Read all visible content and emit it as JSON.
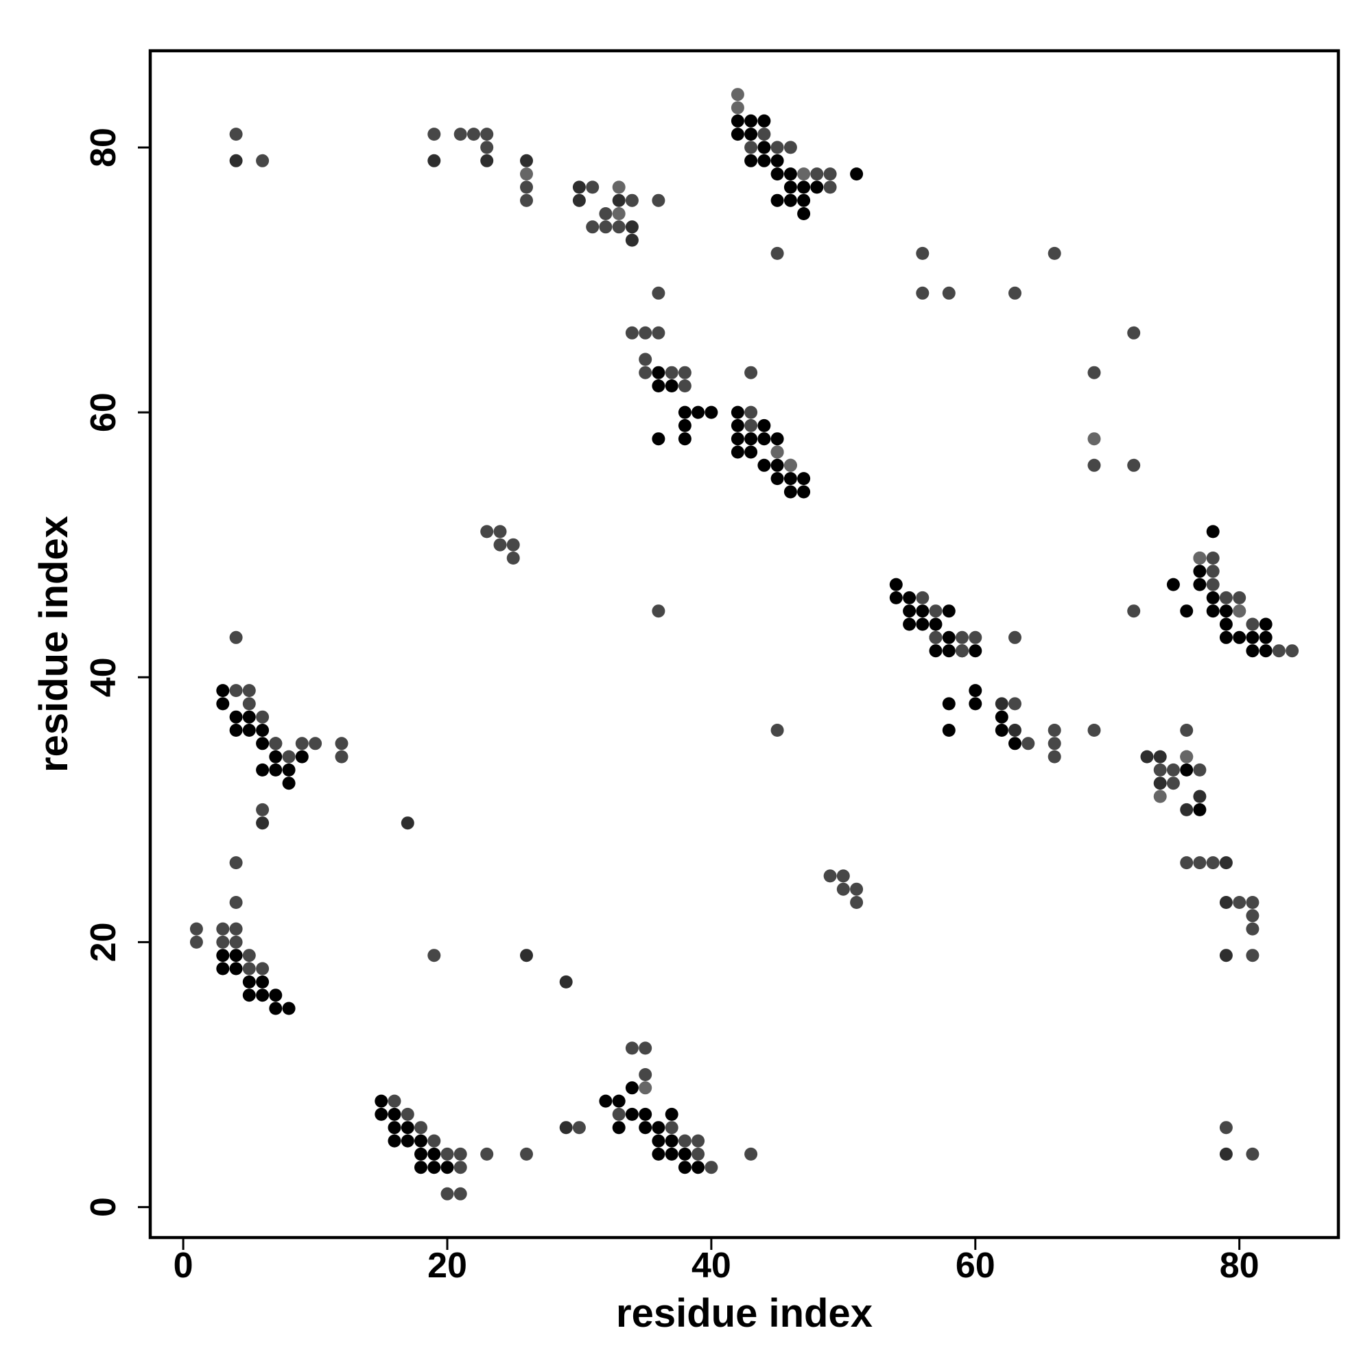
{
  "chart_data": {
    "type": "scatter",
    "title": "",
    "xlabel": "residue index",
    "ylabel": "residue index",
    "xlim": [
      -2.5,
      87.5
    ],
    "ylim": [
      -2.3,
      87.3
    ],
    "xticks": [
      0,
      20,
      40,
      60,
      80
    ],
    "yticks": [
      0,
      20,
      40,
      60,
      80
    ],
    "grid": false,
    "legend": "none",
    "colors": {
      "dark": "#000000",
      "medium": "#2e2e2e",
      "mid": "#474747",
      "light": "#666666"
    },
    "series": [
      {
        "color_key": "dark",
        "points": [
          [
            3,
            19
          ],
          [
            3,
            18
          ],
          [
            4,
            19
          ],
          [
            4,
            18
          ],
          [
            5,
            17
          ],
          [
            5,
            16
          ],
          [
            6,
            17
          ],
          [
            6,
            16
          ],
          [
            7,
            16
          ],
          [
            7,
            15
          ],
          [
            8,
            15
          ],
          [
            3,
            39
          ],
          [
            3,
            38
          ],
          [
            4,
            37
          ],
          [
            4,
            36
          ],
          [
            5,
            37
          ],
          [
            5,
            36
          ],
          [
            6,
            36
          ],
          [
            6,
            35
          ],
          [
            6,
            33
          ],
          [
            7,
            35
          ],
          [
            7,
            34
          ],
          [
            7,
            33
          ],
          [
            8,
            33
          ],
          [
            8,
            32
          ],
          [
            9,
            34
          ],
          [
            15,
            8
          ],
          [
            15,
            7
          ],
          [
            16,
            7
          ],
          [
            16,
            6
          ],
          [
            16,
            5
          ],
          [
            17,
            6
          ],
          [
            17,
            5
          ],
          [
            18,
            5
          ],
          [
            18,
            4
          ],
          [
            18,
            3
          ],
          [
            19,
            4
          ],
          [
            19,
            3
          ],
          [
            20,
            3
          ],
          [
            32,
            8
          ],
          [
            33,
            8
          ],
          [
            33,
            6
          ],
          [
            34,
            9
          ],
          [
            34,
            7
          ],
          [
            35,
            7
          ],
          [
            35,
            6
          ],
          [
            36,
            6
          ],
          [
            36,
            5
          ],
          [
            36,
            4
          ],
          [
            37,
            7
          ],
          [
            37,
            5
          ],
          [
            37,
            4
          ],
          [
            38,
            4
          ],
          [
            38,
            3
          ],
          [
            39,
            3
          ],
          [
            42,
            82
          ],
          [
            42,
            81
          ],
          [
            43,
            82
          ],
          [
            43,
            81
          ],
          [
            43,
            79
          ],
          [
            44,
            82
          ],
          [
            44,
            80
          ],
          [
            44,
            79
          ],
          [
            45,
            79
          ],
          [
            45,
            78
          ],
          [
            45,
            76
          ],
          [
            46,
            78
          ],
          [
            46,
            77
          ],
          [
            46,
            76
          ],
          [
            47,
            77
          ],
          [
            47,
            76
          ],
          [
            47,
            75
          ],
          [
            48,
            77
          ],
          [
            51,
            78
          ],
          [
            36,
            58
          ],
          [
            36,
            62
          ],
          [
            36,
            63
          ],
          [
            37,
            62
          ],
          [
            38,
            59
          ],
          [
            38,
            58
          ],
          [
            38,
            60
          ],
          [
            39,
            60
          ],
          [
            40,
            60
          ],
          [
            42,
            60
          ],
          [
            42,
            59
          ],
          [
            42,
            58
          ],
          [
            42,
            57
          ],
          [
            43,
            58
          ],
          [
            43,
            57
          ],
          [
            44,
            59
          ],
          [
            44,
            58
          ],
          [
            44,
            56
          ],
          [
            45,
            58
          ],
          [
            45,
            56
          ],
          [
            45,
            55
          ],
          [
            46,
            55
          ],
          [
            46,
            54
          ],
          [
            47,
            55
          ],
          [
            47,
            54
          ],
          [
            54,
            47
          ],
          [
            54,
            46
          ],
          [
            55,
            46
          ],
          [
            55,
            45
          ],
          [
            55,
            44
          ],
          [
            56,
            45
          ],
          [
            56,
            44
          ],
          [
            57,
            44
          ],
          [
            57,
            43
          ],
          [
            57,
            42
          ],
          [
            58,
            45
          ],
          [
            58,
            43
          ],
          [
            58,
            42
          ],
          [
            59,
            42
          ],
          [
            60,
            42
          ],
          [
            58,
            38
          ],
          [
            58,
            36
          ],
          [
            60,
            39
          ],
          [
            60,
            38
          ],
          [
            75,
            47
          ],
          [
            76,
            45
          ],
          [
            77,
            48
          ],
          [
            77,
            47
          ],
          [
            78,
            46
          ],
          [
            78,
            51
          ],
          [
            78,
            45
          ],
          [
            79,
            45
          ],
          [
            79,
            44
          ],
          [
            79,
            43
          ],
          [
            80,
            43
          ],
          [
            81,
            43
          ],
          [
            81,
            42
          ],
          [
            82,
            44
          ],
          [
            82,
            43
          ],
          [
            82,
            42
          ],
          [
            76,
            33
          ],
          [
            77,
            30
          ],
          [
            62,
            37
          ],
          [
            62,
            36
          ],
          [
            63,
            35
          ]
        ]
      },
      {
        "color_key": "medium",
        "points": [
          [
            4,
            79
          ],
          [
            19,
            79
          ],
          [
            23,
            79
          ],
          [
            26,
            79
          ],
          [
            30,
            77
          ],
          [
            33,
            76
          ],
          [
            34,
            74
          ],
          [
            34,
            73
          ],
          [
            17,
            29
          ],
          [
            26,
            19
          ],
          [
            29,
            17
          ],
          [
            79,
            4
          ],
          [
            79,
            26
          ],
          [
            79,
            23
          ],
          [
            79,
            19
          ],
          [
            73,
            34
          ],
          [
            76,
            30
          ],
          [
            77,
            31
          ],
          [
            6,
            29
          ],
          [
            62,
            38
          ],
          [
            63,
            36
          ],
          [
            74,
            34
          ],
          [
            74,
            32
          ],
          [
            30,
            76
          ],
          [
            29,
            6
          ]
        ]
      },
      {
        "color_key": "mid",
        "points": [
          [
            3,
            21
          ],
          [
            4,
            21
          ],
          [
            4,
            20
          ],
          [
            3,
            20
          ],
          [
            5,
            19
          ],
          [
            5,
            18
          ],
          [
            6,
            18
          ],
          [
            4,
            39
          ],
          [
            5,
            39
          ],
          [
            5,
            38
          ],
          [
            6,
            37
          ],
          [
            12,
            35
          ],
          [
            12,
            34
          ],
          [
            9,
            35
          ],
          [
            16,
            8
          ],
          [
            17,
            7
          ],
          [
            18,
            6
          ],
          [
            19,
            5
          ],
          [
            20,
            4
          ],
          [
            21,
            4
          ],
          [
            21,
            3
          ],
          [
            23,
            4
          ],
          [
            26,
            4
          ],
          [
            43,
            4
          ],
          [
            81,
            4
          ],
          [
            79,
            6
          ],
          [
            30,
            6
          ],
          [
            35,
            12
          ],
          [
            35,
            10
          ],
          [
            34,
            12
          ],
          [
            40,
            3
          ],
          [
            39,
            5
          ],
          [
            38,
            5
          ],
          [
            39,
            4
          ],
          [
            37,
            6
          ],
          [
            33,
            7
          ],
          [
            22,
            81
          ],
          [
            23,
            81
          ],
          [
            23,
            80
          ],
          [
            21,
            81
          ],
          [
            19,
            19
          ],
          [
            24,
            51
          ],
          [
            24,
            50
          ],
          [
            25,
            50
          ],
          [
            23,
            51
          ],
          [
            25,
            49
          ],
          [
            49,
            25
          ],
          [
            50,
            25
          ],
          [
            50,
            24
          ],
          [
            51,
            24
          ],
          [
            51,
            23
          ],
          [
            43,
            80
          ],
          [
            44,
            81
          ],
          [
            45,
            80
          ],
          [
            46,
            80
          ],
          [
            48,
            78
          ],
          [
            49,
            78
          ],
          [
            49,
            77
          ],
          [
            56,
            72
          ],
          [
            56,
            69
          ],
          [
            63,
            69
          ],
          [
            66,
            72
          ],
          [
            45,
            72
          ],
          [
            35,
            66
          ],
          [
            34,
            66
          ],
          [
            36,
            66
          ],
          [
            35,
            64
          ],
          [
            35,
            63
          ],
          [
            37,
            63
          ],
          [
            38,
            63
          ],
          [
            38,
            62
          ],
          [
            43,
            60
          ],
          [
            43,
            59
          ],
          [
            45,
            57
          ],
          [
            46,
            56
          ],
          [
            56,
            46
          ],
          [
            57,
            45
          ],
          [
            59,
            43
          ],
          [
            59,
            42
          ],
          [
            60,
            43
          ],
          [
            63,
            38
          ],
          [
            66,
            36
          ],
          [
            66,
            35
          ],
          [
            69,
            36
          ],
          [
            69,
            56
          ],
          [
            72,
            56
          ],
          [
            72,
            66
          ],
          [
            69,
            63
          ],
          [
            72,
            45
          ],
          [
            74,
            33
          ],
          [
            75,
            33
          ],
          [
            76,
            34
          ],
          [
            77,
            33
          ],
          [
            78,
            49
          ],
          [
            77,
            49
          ],
          [
            78,
            48
          ],
          [
            80,
            46
          ],
          [
            80,
            45
          ],
          [
            81,
            44
          ],
          [
            83,
            42
          ],
          [
            84,
            42
          ],
          [
            80,
            23
          ],
          [
            81,
            23
          ],
          [
            81,
            22
          ],
          [
            81,
            21
          ],
          [
            81,
            19
          ],
          [
            76,
            26
          ],
          [
            77,
            26
          ],
          [
            78,
            26
          ],
          [
            64,
            35
          ],
          [
            66,
            34
          ],
          [
            36,
            76
          ],
          [
            34,
            76
          ],
          [
            33,
            74
          ],
          [
            32,
            75
          ],
          [
            32,
            74
          ],
          [
            31,
            74
          ],
          [
            31,
            77
          ],
          [
            58,
            69
          ],
          [
            63,
            43
          ],
          [
            45,
            36
          ],
          [
            4,
            26
          ],
          [
            4,
            43
          ],
          [
            6,
            30
          ],
          [
            7,
            35
          ],
          [
            8,
            34
          ],
          [
            10,
            35
          ],
          [
            1,
            21
          ],
          [
            1,
            20
          ],
          [
            4,
            23
          ],
          [
            20,
            1
          ],
          [
            21,
            1
          ],
          [
            19,
            81
          ],
          [
            6,
            79
          ],
          [
            4,
            81
          ],
          [
            26,
            77
          ],
          [
            26,
            76
          ],
          [
            36,
            45
          ],
          [
            36,
            69
          ],
          [
            43,
            63
          ],
          [
            57,
            43
          ],
          [
            76,
            36
          ],
          [
            75,
            32
          ],
          [
            78,
            47
          ],
          [
            79,
            46
          ]
        ]
      },
      {
        "color_key": "light",
        "points": [
          [
            42,
            84
          ],
          [
            42,
            83
          ],
          [
            26,
            78
          ],
          [
            33,
            77
          ],
          [
            33,
            75
          ],
          [
            35,
            9
          ],
          [
            69,
            58
          ],
          [
            74,
            31
          ],
          [
            76,
            34
          ],
          [
            80,
            45
          ],
          [
            77,
            49
          ],
          [
            46,
            56
          ],
          [
            45,
            57
          ],
          [
            47,
            78
          ]
        ]
      }
    ]
  }
}
